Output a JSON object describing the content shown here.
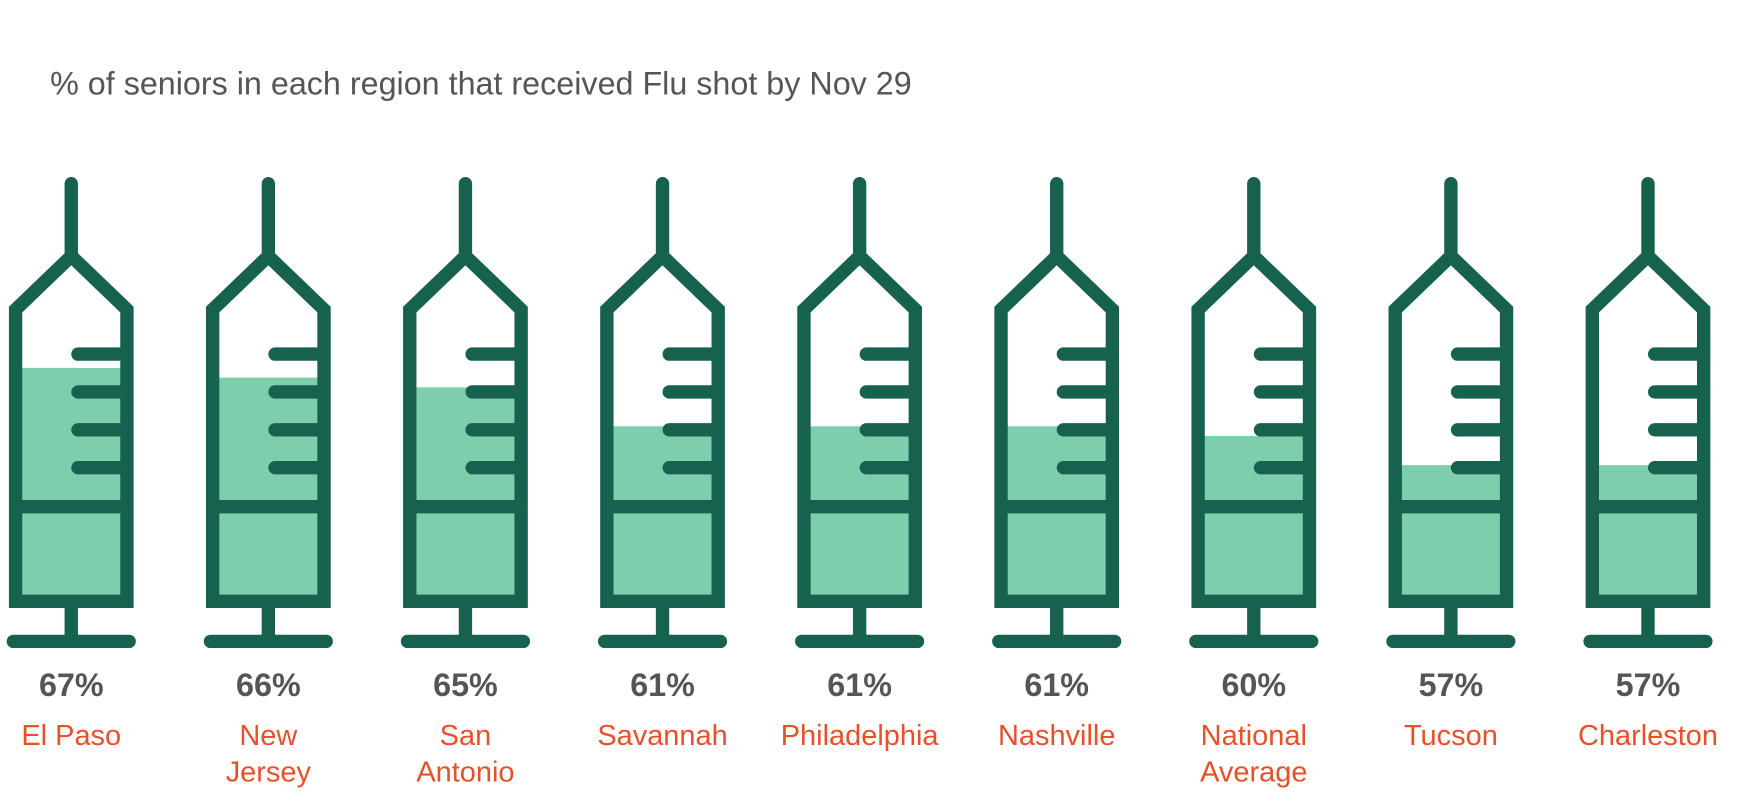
{
  "chart_data": {
    "type": "syringe",
    "title": "% of seniors in each region that received Flu shot by Nov 29",
    "categories": [
      "El Paso",
      "New Jersey",
      "San Antonio",
      "Savannah",
      "Philadelphia",
      "Nashville",
      "National Average",
      "Tucson",
      "Charleston"
    ],
    "values": [
      67,
      66,
      65,
      61,
      61,
      61,
      60,
      57,
      57
    ],
    "value_labels": [
      "67%",
      "66%",
      "65%",
      "61%",
      "61%",
      "61%",
      "60%",
      "57%",
      "57%"
    ],
    "ylim": [
      43,
      73
    ],
    "color": "#7ecdad",
    "outline_color": "#17614f"
  }
}
